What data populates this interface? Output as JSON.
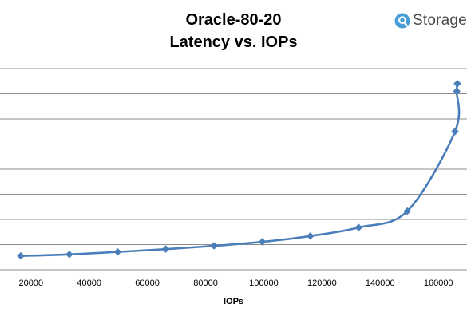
{
  "chart_data": {
    "type": "line",
    "title": "Oracle-80-20",
    "subtitle": "Latency vs. IOPs",
    "xlabel": "IOPs",
    "ylabel": "",
    "xlim": [
      10000,
      168000
    ],
    "x_ticks": [
      20000,
      40000,
      60000,
      80000,
      100000,
      120000,
      140000,
      160000
    ],
    "x_tick_labels": [
      "20000",
      "40000",
      "60000",
      "80000",
      "100000",
      "120000",
      "140000",
      "160000"
    ],
    "y_tick_labels_visible": false,
    "ylim": [
      0,
      8
    ],
    "y_gridlines": [
      1,
      2,
      3,
      4,
      5,
      6,
      7,
      8
    ],
    "grid": true,
    "legend": "none",
    "series": [
      {
        "color": "#4a7ebb",
        "marker": "diamond",
        "smooth": true,
        "x": [
          16500,
          33200,
          49800,
          66300,
          82900,
          99500,
          116000,
          132600,
          149300,
          165700,
          166300,
          166500
        ],
        "y": [
          0.55,
          0.61,
          0.71,
          0.82,
          0.95,
          1.11,
          1.34,
          1.68,
          2.33,
          5.5,
          7.1,
          7.4
        ]
      }
    ]
  },
  "brand": {
    "name": "Storage",
    "icon": "storagereview-logo-icon",
    "icon_color": "#4a9ed6"
  }
}
